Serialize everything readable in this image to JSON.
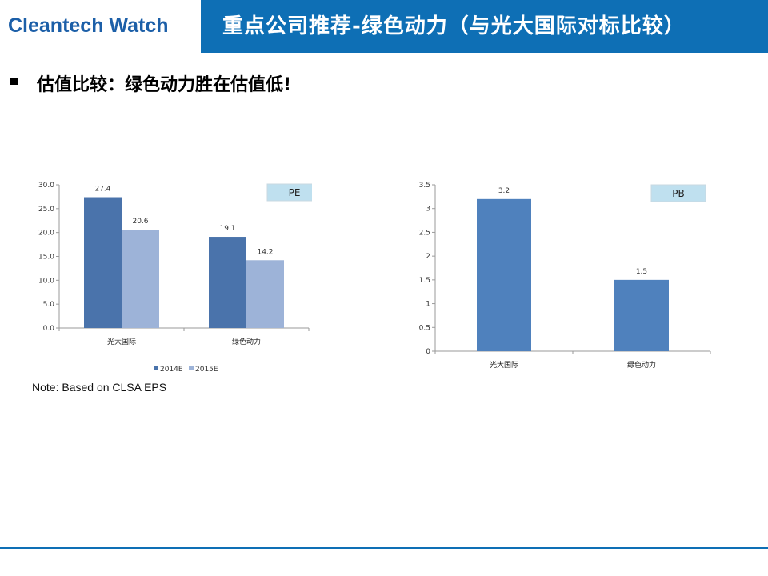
{
  "header": {
    "logo": "Cleantech Watch",
    "title": "重点公司推荐-绿色动力（与光大国际对标比较）",
    "bar_color": "#0e6fb5"
  },
  "bullet": {
    "text": "估值比较：绿色动力胜在估值低!"
  },
  "note": "Note: Based on CLSA EPS",
  "chart_data": [
    {
      "type": "bar",
      "tag": "PE",
      "categories": [
        "光大国际",
        "绿色动力"
      ],
      "series": [
        {
          "name": "2014E",
          "values": [
            27.4,
            19.1
          ],
          "color": "#4a73ab"
        },
        {
          "name": "2015E",
          "values": [
            20.6,
            14.2
          ],
          "color": "#9db3d8"
        }
      ],
      "ylim": [
        0,
        30
      ],
      "yticks": [
        "0.0",
        "5.0",
        "10.0",
        "15.0",
        "20.0",
        "25.0",
        "30.0"
      ],
      "legend": "bottom",
      "grid": false
    },
    {
      "type": "bar",
      "tag": "PB",
      "categories": [
        "光大国际",
        "绿色动力"
      ],
      "series": [
        {
          "values": [
            3.2,
            1.5
          ],
          "color": "#4f81bd"
        }
      ],
      "ylim": [
        0,
        3.5
      ],
      "yticks": [
        "0",
        "0.5",
        "1",
        "1.5",
        "2",
        "2.5",
        "3",
        "3.5"
      ],
      "legend": "none",
      "grid": false
    }
  ]
}
